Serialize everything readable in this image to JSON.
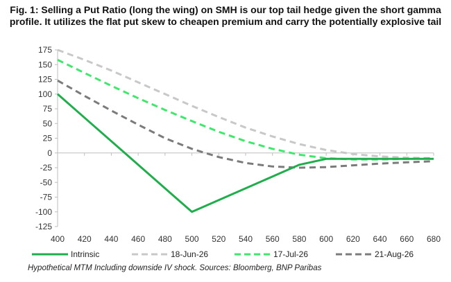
{
  "title": "Fig. 1: Selling a Put Ratio (long the wing) on SMH is our top tail hedge given the short gamma profile. It utilizes the flat put skew to cheapen premium and carry the potentially explosive tail",
  "source": "Hypothetical MTM Including downside IV shock. Sources: Bloomberg, BNP Paribas",
  "chart_data": {
    "type": "line",
    "title": "Fig. 1: Selling a Put Ratio (long the wing) on SMH is our top tail hedge given the short gamma profile. It utilizes the flat put skew to cheapen premium and carry the potentially explosive tail",
    "xlabel": "",
    "ylabel": "",
    "xlim": [
      400,
      680
    ],
    "ylim": [
      -125,
      175
    ],
    "x_ticks": [
      400,
      420,
      440,
      460,
      480,
      500,
      520,
      540,
      560,
      580,
      600,
      620,
      640,
      660,
      680
    ],
    "y_ticks": [
      175,
      150,
      125,
      100,
      75,
      50,
      25,
      0,
      -25,
      -50,
      -75,
      -100,
      -125
    ],
    "grid": false,
    "legend_position": "bottom",
    "series": [
      {
        "name": "Intrinsic",
        "color": "#1fae4b",
        "dash": "solid",
        "x": [
          400,
          450,
          500,
          580,
          600,
          680
        ],
        "y": [
          100,
          0,
          -100,
          -20,
          -10,
          -10
        ]
      },
      {
        "name": "18-Jun-26",
        "color": "#c8c8c8",
        "dash": "dashed",
        "x": [
          400,
          420,
          440,
          460,
          480,
          500,
          520,
          540,
          560,
          580,
          600,
          620,
          640,
          660,
          680
        ],
        "y": [
          175,
          158,
          140,
          120,
          100,
          80,
          61,
          43,
          28,
          15,
          5,
          -2,
          -6,
          -8,
          -9
        ]
      },
      {
        "name": "17-Jul-26",
        "color": "#3ee86a",
        "dash": "dashed",
        "x": [
          400,
          420,
          440,
          460,
          480,
          500,
          520,
          540,
          560,
          580,
          600,
          620,
          640,
          660,
          680
        ],
        "y": [
          158,
          136,
          114,
          93,
          73,
          54,
          36,
          20,
          7,
          -3,
          -9,
          -11,
          -11,
          -10,
          -9
        ]
      },
      {
        "name": "21-Aug-26",
        "color": "#7b7b7b",
        "dash": "dashed",
        "x": [
          400,
          420,
          440,
          460,
          480,
          500,
          520,
          540,
          560,
          580,
          600,
          620,
          640,
          660,
          680
        ],
        "y": [
          123,
          97,
          72,
          48,
          25,
          7,
          -7,
          -17,
          -23,
          -25,
          -24,
          -21,
          -18,
          -16,
          -14
        ]
      }
    ]
  }
}
